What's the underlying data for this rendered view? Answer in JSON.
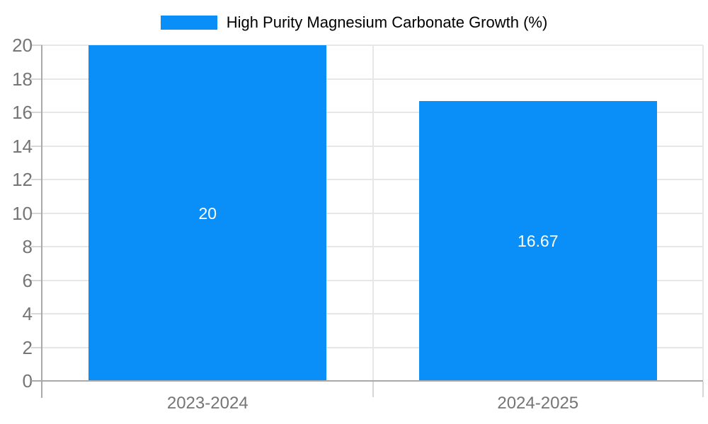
{
  "chart_data": {
    "type": "bar",
    "title": "High Purity Magnesium Carbonate Growth (%)",
    "legend_position": "top",
    "categories": [
      "2023-2024",
      "2024-2025"
    ],
    "series": [
      {
        "name": "High Purity Magnesium Carbonate Growth (%)",
        "values": [
          20,
          16.67
        ],
        "value_labels": [
          "20",
          "16.67"
        ]
      }
    ],
    "xlabel": "",
    "ylabel": "",
    "ylim": [
      0,
      20
    ],
    "yticks": [
      0,
      2,
      4,
      6,
      8,
      10,
      12,
      14,
      16,
      18,
      20
    ],
    "grid": true,
    "colors": {
      "bar": "#0A8FF8",
      "bar_value_label": "#FFFFFF",
      "axis_text": "#757575",
      "axis_line": "#A9A9A9",
      "gridline": "#E7E7E7",
      "tick": "#D6D6D6",
      "background": "#FFFFFF"
    }
  }
}
